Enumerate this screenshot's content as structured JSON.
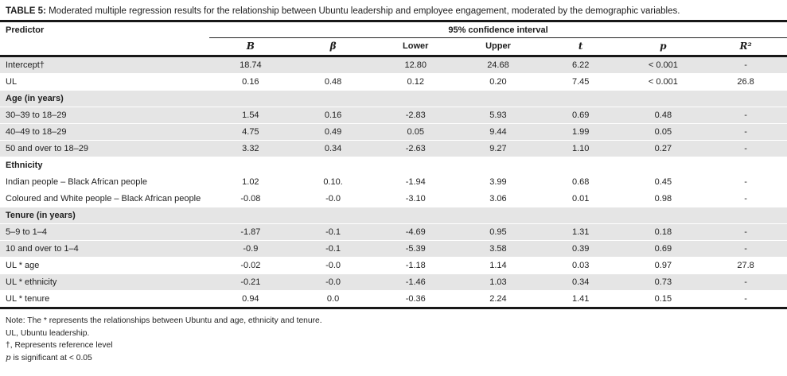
{
  "title": {
    "prefix": "TABLE 5:",
    "text": " Moderated multiple regression results for the relationship between Ubuntu leadership and employee engagement, moderated by the demographic variables."
  },
  "table": {
    "predictor_header": "Predictor",
    "span_header": "95% confidence interval",
    "columns": [
      "B",
      "β",
      "Lower",
      "Upper",
      "t",
      "p",
      "R²"
    ],
    "rows": [
      {
        "label": "Intercept†",
        "section": false,
        "shade": true,
        "values": [
          "18.74",
          "",
          "12.80",
          "24.68",
          "6.22",
          "< 0.001",
          "-"
        ]
      },
      {
        "label": "UL",
        "section": false,
        "shade": false,
        "values": [
          "0.16",
          "0.48",
          "0.12",
          "0.20",
          "7.45",
          "< 0.001",
          "26.8"
        ]
      },
      {
        "label": "Age (in years)",
        "section": true,
        "shade": true,
        "values": []
      },
      {
        "label": "30–39 to 18–29",
        "section": false,
        "shade": true,
        "values": [
          "1.54",
          "0.16",
          "-2.83",
          "5.93",
          "0.69",
          "0.48",
          "-"
        ]
      },
      {
        "label": "40–49 to 18–29",
        "section": false,
        "shade": true,
        "values": [
          "4.75",
          "0.49",
          "0.05",
          "9.44",
          "1.99",
          "0.05",
          "-"
        ]
      },
      {
        "label": "50 and over to 18–29",
        "section": false,
        "shade": true,
        "values": [
          "3.32",
          "0.34",
          "-2.63",
          "9.27",
          "1.10",
          "0.27",
          "-"
        ]
      },
      {
        "label": "Ethnicity",
        "section": true,
        "shade": false,
        "values": []
      },
      {
        "label": "Indian people – Black African people",
        "section": false,
        "shade": false,
        "values": [
          "1.02",
          "0.10.",
          "-1.94",
          "3.99",
          "0.68",
          "0.45",
          "-"
        ]
      },
      {
        "label": "Coloured and White people – Black African people",
        "section": false,
        "shade": false,
        "values": [
          "-0.08",
          "-0.0",
          "-3.10",
          "3.06",
          "0.01",
          "0.98",
          "-"
        ]
      },
      {
        "label": "Tenure (in years)",
        "section": true,
        "shade": true,
        "values": []
      },
      {
        "label": "5–9 to 1–4",
        "section": false,
        "shade": true,
        "values": [
          "-1.87",
          "-0.1",
          "-4.69",
          "0.95",
          "1.31",
          "0.18",
          "-"
        ]
      },
      {
        "label": "10 and over to 1–4",
        "section": false,
        "shade": true,
        "values": [
          "-0.9",
          "-0.1",
          "-5.39",
          "3.58",
          "0.39",
          "0.69",
          "-"
        ]
      },
      {
        "label": "UL * age",
        "section": false,
        "shade": false,
        "values": [
          "-0.02",
          "-0.0",
          "-1.18",
          "1.14",
          "0.03",
          "0.97",
          "27.8"
        ]
      },
      {
        "label": "UL * ethnicity",
        "section": false,
        "shade": true,
        "values": [
          "-0.21",
          "-0.0",
          "-1.46",
          "1.03",
          "0.34",
          "0.73",
          "-"
        ]
      },
      {
        "label": "UL * tenure",
        "section": false,
        "shade": false,
        "values": [
          "0.94",
          "0.0",
          "-0.36",
          "2.24",
          "1.41",
          "0.15",
          "-"
        ]
      }
    ]
  },
  "notes": [
    {
      "italic": "",
      "text": "Note: The * represents the relationships between Ubuntu and age, ethnicity and tenure."
    },
    {
      "italic": "",
      "text": "UL, Ubuntu leadership."
    },
    {
      "italic": "",
      "text": "†, Represents reference level"
    },
    {
      "italic": "p",
      "text": " is significant at < 0.05"
    }
  ],
  "colors": {
    "row_shade": "#e5e5e5",
    "rule": "#181818",
    "text": "#1f1f1f"
  }
}
